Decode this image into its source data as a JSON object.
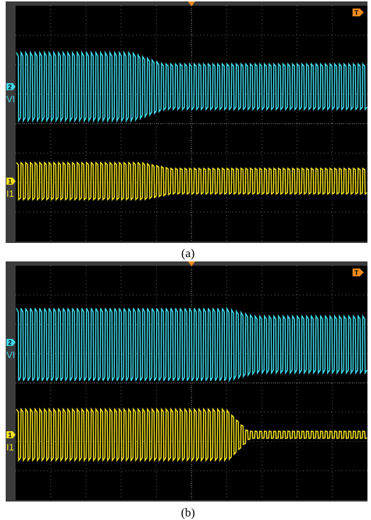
{
  "panels": [
    {
      "caption": "(a)",
      "trigger_label": "T",
      "channels": [
        {
          "number": "2",
          "label": "VI"
        },
        {
          "number": "1",
          "label": "I1"
        }
      ]
    },
    {
      "caption": "(b)",
      "trigger_label": "T",
      "channels": [
        {
          "number": "2",
          "label": "VI"
        },
        {
          "number": "1",
          "label": "I1"
        }
      ]
    }
  ]
}
